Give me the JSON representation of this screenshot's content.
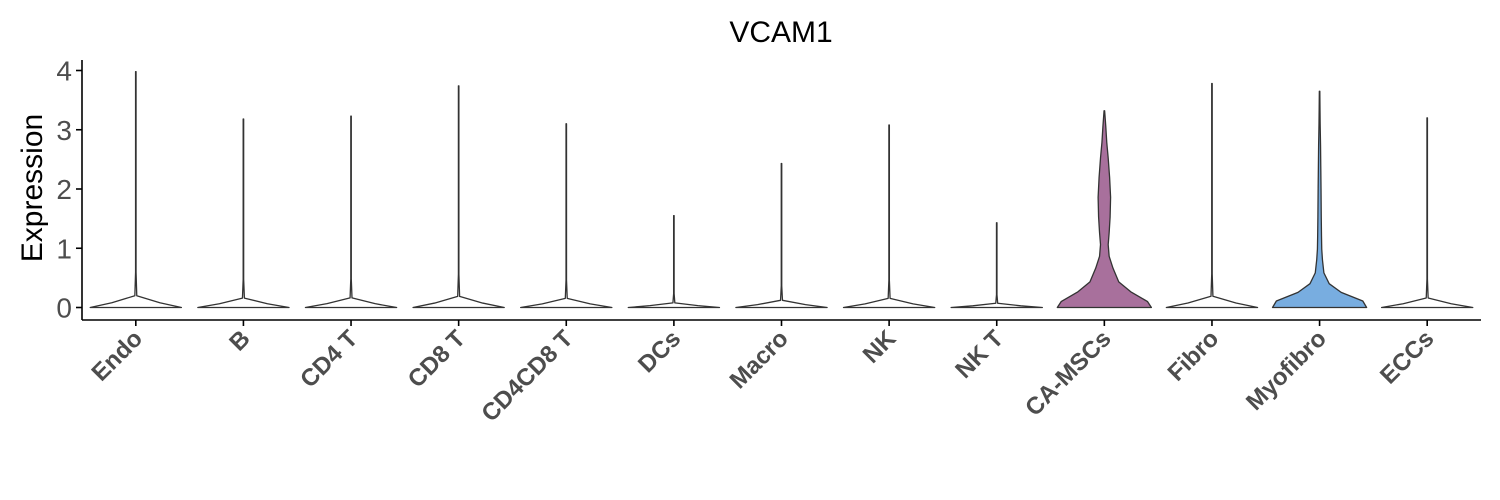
{
  "chart_data": {
    "type": "violin",
    "title": "VCAM1",
    "xlabel": "",
    "ylabel": "Expression",
    "ylim": [
      -0.2,
      4.15
    ],
    "yticks": [
      0,
      1,
      2,
      3,
      4
    ],
    "grid": false,
    "legend": "none",
    "categories": [
      "Endo",
      "B",
      "CD4 T",
      "CD8 T",
      "CD4CD8 T",
      "DCs",
      "Macro",
      "NK",
      "NK T",
      "CA-MSCs",
      "Fibro",
      "Myofibro",
      "ECCs"
    ],
    "max_values": [
      3.98,
      3.18,
      3.23,
      3.74,
      3.1,
      1.55,
      2.43,
      3.08,
      1.43,
      3.32,
      3.78,
      3.65,
      3.2
    ],
    "fill_colors": [
      "#ffffff",
      "#ffffff",
      "#ffffff",
      "#ffffff",
      "#ffffff",
      "#ffffff",
      "#ffffff",
      "#ffffff",
      "#ffffff",
      "#a8709c",
      "#ffffff",
      "#78ade0",
      "#ffffff"
    ],
    "density_profiles": [
      [
        [
          0,
          0.95
        ],
        [
          0.02,
          0.5
        ],
        [
          0.05,
          0.02
        ],
        [
          0.15,
          0.005
        ],
        [
          1,
          0.005
        ]
      ],
      [
        [
          0,
          0.95
        ],
        [
          0.02,
          0.5
        ],
        [
          0.05,
          0.02
        ],
        [
          0.15,
          0.005
        ],
        [
          1,
          0.005
        ]
      ],
      [
        [
          0,
          0.95
        ],
        [
          0.02,
          0.5
        ],
        [
          0.05,
          0.02
        ],
        [
          0.15,
          0.005
        ],
        [
          1,
          0.005
        ]
      ],
      [
        [
          0,
          0.95
        ],
        [
          0.02,
          0.5
        ],
        [
          0.05,
          0.02
        ],
        [
          0.15,
          0.005
        ],
        [
          1,
          0.005
        ]
      ],
      [
        [
          0,
          0.95
        ],
        [
          0.02,
          0.5
        ],
        [
          0.05,
          0.02
        ],
        [
          0.15,
          0.005
        ],
        [
          1,
          0.005
        ]
      ],
      [
        [
          0,
          0.95
        ],
        [
          0.02,
          0.5
        ],
        [
          0.05,
          0.02
        ],
        [
          0.15,
          0.005
        ],
        [
          1,
          0.005
        ]
      ],
      [
        [
          0,
          0.95
        ],
        [
          0.02,
          0.5
        ],
        [
          0.05,
          0.02
        ],
        [
          0.15,
          0.005
        ],
        [
          1,
          0.005
        ]
      ],
      [
        [
          0,
          0.95
        ],
        [
          0.02,
          0.5
        ],
        [
          0.05,
          0.02
        ],
        [
          0.15,
          0.005
        ],
        [
          1,
          0.005
        ]
      ],
      [
        [
          0,
          0.95
        ],
        [
          0.02,
          0.5
        ],
        [
          0.05,
          0.02
        ],
        [
          0.15,
          0.005
        ],
        [
          1,
          0.005
        ]
      ],
      [
        [
          0,
          0.98
        ],
        [
          0.03,
          0.9
        ],
        [
          0.08,
          0.55
        ],
        [
          0.13,
          0.3
        ],
        [
          0.2,
          0.18
        ],
        [
          0.26,
          0.1
        ],
        [
          0.32,
          0.08
        ],
        [
          0.38,
          0.1
        ],
        [
          0.46,
          0.12
        ],
        [
          0.56,
          0.13
        ],
        [
          0.66,
          0.11
        ],
        [
          0.76,
          0.08
        ],
        [
          0.84,
          0.05
        ],
        [
          0.92,
          0.03
        ],
        [
          0.97,
          0.015
        ],
        [
          1,
          0.006
        ]
      ],
      [
        [
          0,
          0.95
        ],
        [
          0.02,
          0.5
        ],
        [
          0.05,
          0.02
        ],
        [
          0.15,
          0.005
        ],
        [
          1,
          0.005
        ]
      ],
      [
        [
          0,
          0.98
        ],
        [
          0.03,
          0.9
        ],
        [
          0.07,
          0.45
        ],
        [
          0.11,
          0.2
        ],
        [
          0.16,
          0.09
        ],
        [
          0.22,
          0.06
        ],
        [
          0.27,
          0.045
        ],
        [
          0.33,
          0.04
        ],
        [
          0.42,
          0.035
        ],
        [
          0.55,
          0.03
        ],
        [
          0.65,
          0.025
        ],
        [
          0.75,
          0.02
        ],
        [
          0.85,
          0.012
        ],
        [
          0.93,
          0.008
        ],
        [
          1,
          0.005
        ]
      ],
      [
        [
          0,
          0.95
        ],
        [
          0.02,
          0.5
        ],
        [
          0.05,
          0.02
        ],
        [
          0.15,
          0.005
        ],
        [
          1,
          0.005
        ]
      ]
    ]
  }
}
